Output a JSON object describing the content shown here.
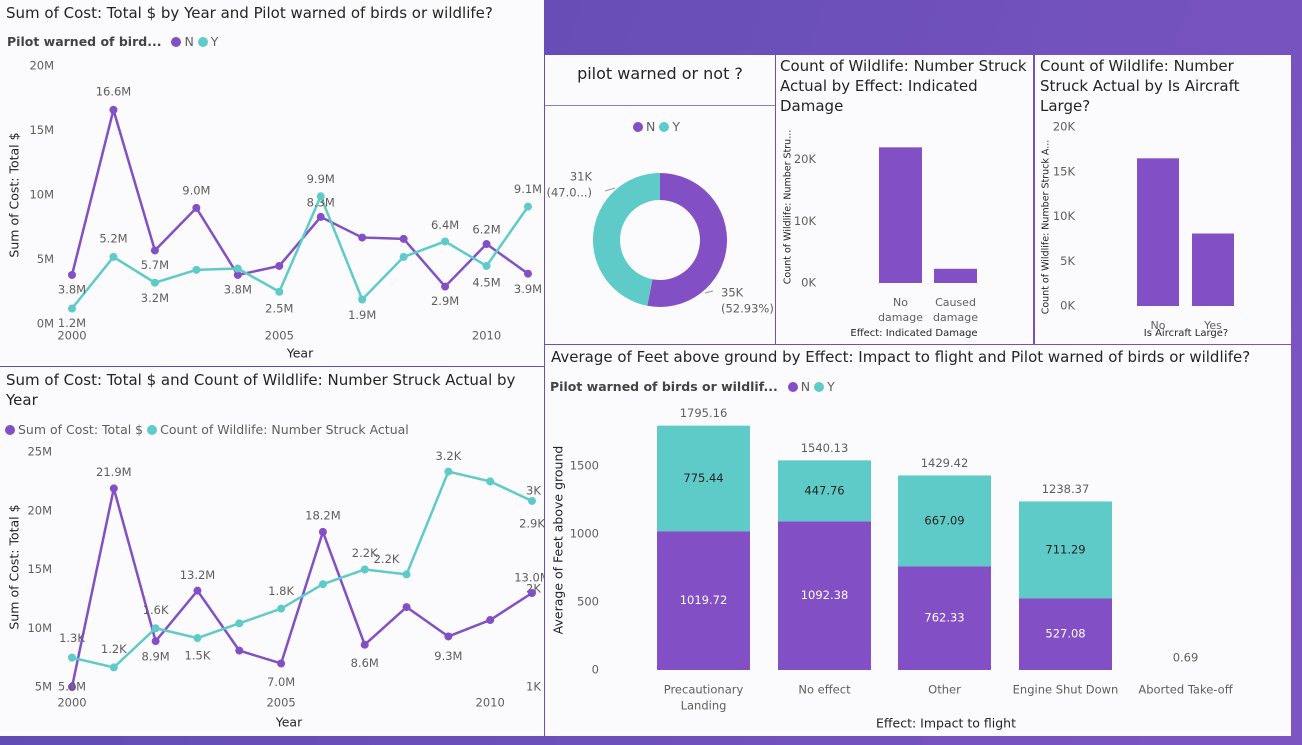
{
  "colors": {
    "N": "#8250c4",
    "Y": "#5ecbc8",
    "text": "#252423",
    "axis": "#605e5c",
    "grid": "#e1dfdd"
  },
  "chart_data": [
    {
      "id": "cost_by_year_warned",
      "type": "line",
      "title": "Sum of Cost: Total $ by Year and Pilot warned of birds or wildlife?",
      "legend_title": "Pilot warned of bird...",
      "xlabel": "Year",
      "ylabel": "Sum of Cost: Total $",
      "x": [
        2000,
        2001,
        2002,
        2003,
        2004,
        2005,
        2006,
        2007,
        2008,
        2009,
        2010,
        2011
      ],
      "x_ticks": [
        "2000",
        "2005",
        "2010"
      ],
      "y_ticks": [
        "0M",
        "5M",
        "10M",
        "15M",
        "20M"
      ],
      "ylim": [
        0,
        20
      ],
      "series": [
        {
          "name": "N",
          "values": [
            3.8,
            16.6,
            5.7,
            9.0,
            3.8,
            4.5,
            8.3,
            6.7,
            6.6,
            2.9,
            6.2,
            3.9
          ],
          "labels": [
            "3.8M",
            "16.6M",
            "5.7M",
            "9.0M",
            "3.8M",
            "",
            "8.3M",
            "",
            "",
            "2.9M",
            "6.2M",
            "3.9M"
          ]
        },
        {
          "name": "Y",
          "values": [
            1.2,
            5.2,
            3.2,
            4.2,
            4.3,
            2.5,
            9.9,
            1.9,
            5.2,
            6.4,
            4.5,
            9.1
          ],
          "labels": [
            "1.2M",
            "5.2M",
            "3.2M",
            "",
            "",
            "2.5M",
            "9.9M",
            "1.9M",
            "",
            "6.4M",
            "4.5M",
            "9.1M"
          ]
        }
      ]
    },
    {
      "id": "warned_donut",
      "type": "pie",
      "title": "pilot warned or not ?",
      "categories": [
        "N",
        "Y"
      ],
      "values": [
        35,
        31
      ],
      "labels": [
        "35K",
        "31K"
      ],
      "percent_labels": [
        "(52.93%)",
        "(47.0...)"
      ]
    },
    {
      "id": "struck_by_damage",
      "type": "bar",
      "title": "Count of Wildlife: Number Struck Actual by Effect: Indicated Damage",
      "xlabel": "Effect: Indicated Damage",
      "ylabel": "Count of Wildlife: Number Stru...",
      "categories": [
        [
          "No",
          "damage"
        ],
        [
          "Caused",
          "damage"
        ]
      ],
      "values": [
        22,
        2.3
      ],
      "y_ticks": [
        "0K",
        "10K",
        "20K"
      ],
      "ylim": [
        0,
        24
      ]
    },
    {
      "id": "struck_by_large",
      "type": "bar",
      "title": "Count of Wildlife: Number Struck Actual by Is Aircraft Large?",
      "xlabel": "Is Aircraft Large?",
      "ylabel": "Count of Wildlife: Number Struck A...",
      "categories": [
        [
          "No"
        ],
        [
          "Yes"
        ]
      ],
      "values": [
        16.5,
        8.1
      ],
      "y_ticks": [
        "0K",
        "5K",
        "10K",
        "15K",
        "20K"
      ],
      "ylim": [
        0,
        20
      ]
    },
    {
      "id": "cost_and_struck_by_year",
      "type": "line",
      "title": "Sum of Cost: Total $ and Count of Wildlife: Number Struck Actual by Year",
      "xlabel": "Year",
      "ylabel": "Sum of Cost: Total $",
      "x": [
        2000,
        2001,
        2002,
        2003,
        2004,
        2005,
        2006,
        2007,
        2008,
        2009,
        2010,
        2011
      ],
      "x_ticks": [
        "2000",
        "2005",
        "2010"
      ],
      "y_ticks": [
        "5M",
        "10M",
        "15M",
        "20M",
        "25M"
      ],
      "ylim": [
        5,
        25
      ],
      "y2_ticks": [
        "1K",
        "2K",
        "3K"
      ],
      "y2lim": [
        1,
        3.4
      ],
      "series": [
        {
          "name": "Sum of Cost: Total $",
          "axis": "left",
          "values": [
            5.0,
            21.9,
            8.9,
            13.2,
            8.1,
            7.0,
            18.2,
            8.6,
            11.8,
            9.3,
            10.7,
            13.0
          ],
          "labels": [
            "5.0M",
            "21.9M",
            "8.9M",
            "13.2M",
            "",
            "7.0M",
            "18.2M",
            "8.6M",
            "",
            "9.3M",
            "",
            "13.0M"
          ]
        },
        {
          "name": "Count of Wildlife: Number Struck Actual",
          "axis": "right",
          "values": [
            1.3,
            1.2,
            1.6,
            1.5,
            1.65,
            1.8,
            2.05,
            2.2,
            2.15,
            3.2,
            3.1,
            2.9
          ],
          "labels": [
            "1.3K",
            "1.2K",
            "1.6K",
            "1.5K",
            "",
            "1.8K",
            "",
            "2.2K",
            "2.2K",
            "3.2K",
            "",
            "2.9K"
          ]
        }
      ]
    },
    {
      "id": "feet_by_impact",
      "type": "bar",
      "stacked": true,
      "title": "Average of Feet above ground by Effect: Impact to flight and Pilot warned of birds or wildlife?",
      "legend_title": "Pilot warned of birds or wildlif...",
      "xlabel": "Effect: Impact to flight",
      "ylabel": "Average of Feet above ground",
      "categories": [
        [
          "Precautionary",
          "Landing"
        ],
        [
          "No effect"
        ],
        [
          "Other"
        ],
        [
          "Engine Shut Down"
        ],
        [
          "Aborted Take-off"
        ]
      ],
      "series": [
        {
          "name": "N",
          "values": [
            1019.72,
            1092.38,
            762.33,
            527.08,
            0.69
          ],
          "labels": [
            "1019.72",
            "1092.38",
            "762.33",
            "527.08",
            ""
          ]
        },
        {
          "name": "Y",
          "values": [
            775.44,
            447.76,
            667.09,
            711.29,
            0
          ],
          "labels": [
            "775.44",
            "447.76",
            "667.09",
            "711.29",
            ""
          ]
        }
      ],
      "totals": [
        "1795.16",
        "1540.13",
        "1429.42",
        "1238.37",
        "0.69"
      ],
      "y_ticks": [
        "0",
        "500",
        "1000",
        "1500"
      ],
      "ylim": [
        0,
        1800
      ]
    }
  ]
}
